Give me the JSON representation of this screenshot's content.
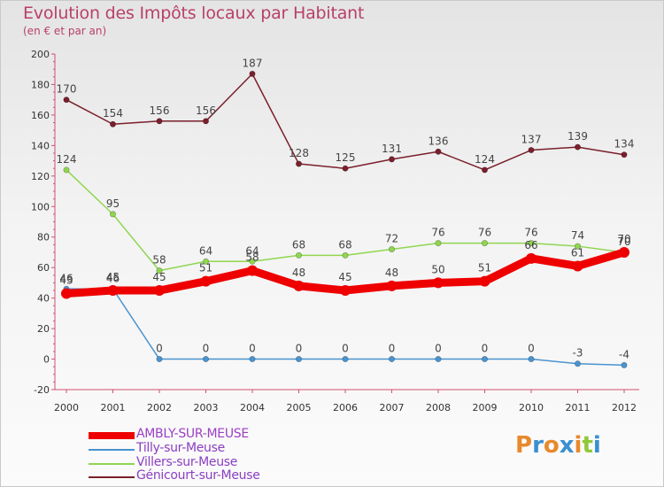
{
  "title": "Evolution des Impôts locaux par Habitant",
  "subtitle": "(en € et par an)",
  "chart_data": {
    "type": "line",
    "title": "Evolution des Impôts locaux par Habitant",
    "subtitle": "(en € et par an)",
    "xlabel": "",
    "ylabel": "",
    "x": [
      "2000",
      "2001",
      "2002",
      "2003",
      "2004",
      "2005",
      "2006",
      "2007",
      "2008",
      "2009",
      "2010",
      "2011",
      "2012"
    ],
    "ylim": [
      -20,
      200
    ],
    "yticks": [
      -20,
      0,
      20,
      40,
      60,
      80,
      100,
      120,
      140,
      160,
      180,
      200
    ],
    "grid": false,
    "legend_position": "bottom-left",
    "series": [
      {
        "name": "Génicourt-sur-Meuse",
        "color": "#7a1f2b",
        "values": [
          170,
          154,
          156,
          156,
          187,
          128,
          125,
          131,
          136,
          124,
          137,
          139,
          134
        ]
      },
      {
        "name": "Villers-sur-Meuse",
        "color": "#8fd650",
        "values": [
          124,
          95,
          58,
          64,
          64,
          68,
          68,
          72,
          76,
          76,
          76,
          74,
          70
        ]
      },
      {
        "name": "Tilly-sur-Meuse",
        "color": "#4a93cf",
        "values": [
          46,
          46,
          0,
          0,
          0,
          0,
          0,
          0,
          0,
          0,
          0,
          -3,
          -4
        ]
      },
      {
        "name": "AMBLY-SUR-MEUSE",
        "color": "#ee0000",
        "values": [
          43,
          45,
          45,
          51,
          58,
          48,
          45,
          48,
          50,
          51,
          66,
          61,
          70
        ]
      }
    ]
  },
  "legend": [
    {
      "label": "AMBLY-SUR-MEUSE",
      "color": "#ee0000",
      "text_color": "#9b3fc6"
    },
    {
      "label": "Tilly-sur-Meuse",
      "color": "#4a93cf",
      "text_color": "#8a3fc2"
    },
    {
      "label": "Villers-sur-Meuse",
      "color": "#8fd650",
      "text_color": "#8a3fc2"
    },
    {
      "label": "Génicourt-sur-Meuse",
      "color": "#7a1f2b",
      "text_color": "#8a3fc2"
    }
  ],
  "logo": {
    "text": "Proxiti",
    "letters": [
      "P",
      "r",
      "o",
      "x",
      "i",
      "t",
      "i"
    ],
    "colors": [
      "#e8892b",
      "#3b8fd0",
      "#e8892b",
      "#3b8fd0",
      "#e8892b",
      "#8fc93a",
      "#3b8fd0"
    ]
  }
}
